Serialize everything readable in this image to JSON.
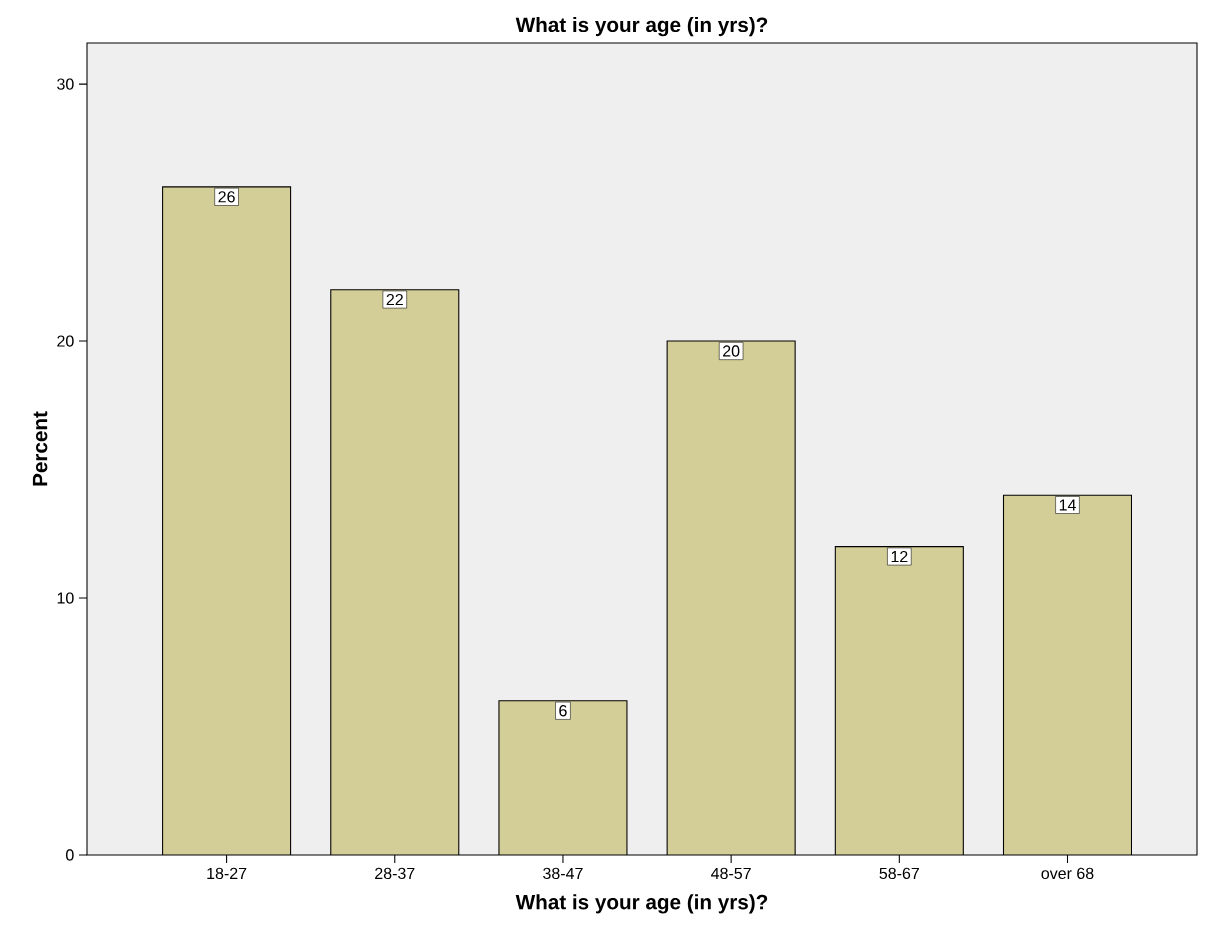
{
  "chart_data": {
    "type": "bar",
    "title": "What is your age (in yrs)?",
    "xlabel": "What is your age (in yrs)?",
    "ylabel": "Percent",
    "categories": [
      "18-27",
      "28-37",
      "38-47",
      "48-57",
      "58-67",
      "over 68"
    ],
    "values": [
      26,
      22,
      6,
      20,
      12,
      14
    ],
    "color": "#d3cd97",
    "ylim": [
      0,
      31.6
    ],
    "yticks": [
      0,
      10,
      20,
      30
    ],
    "data_labels": true,
    "grid": false
  }
}
